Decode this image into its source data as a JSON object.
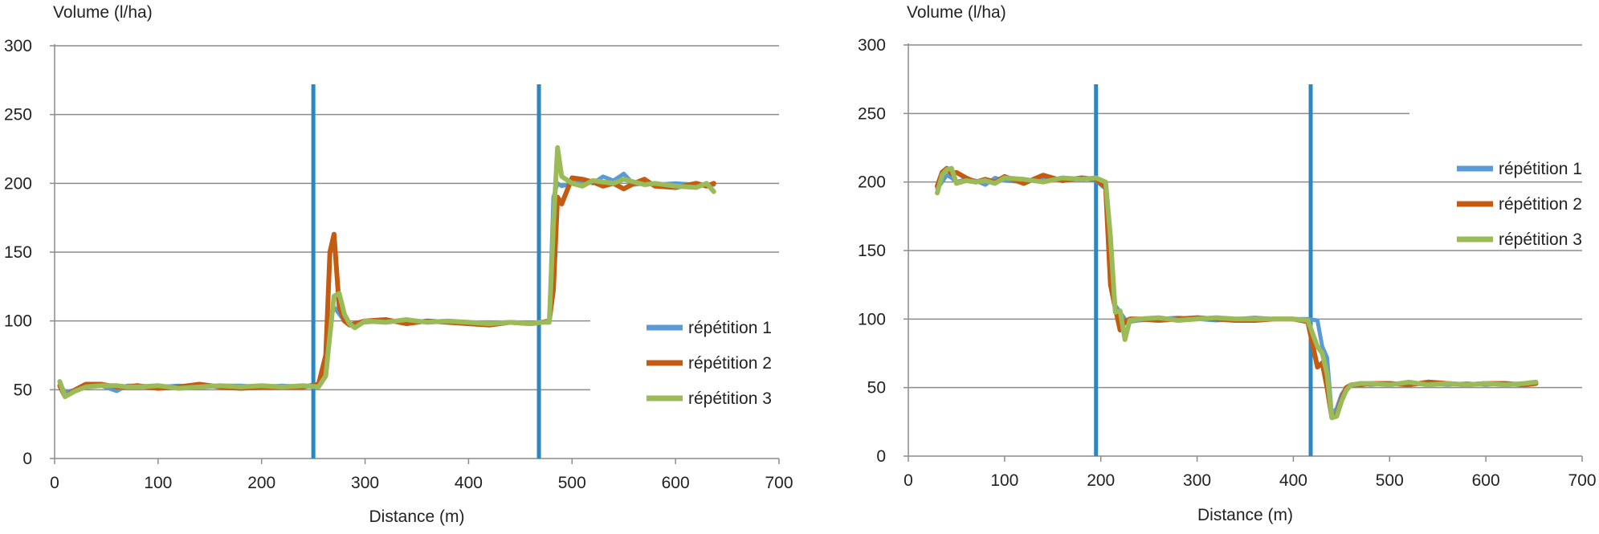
{
  "chart_data": [
    {
      "type": "line",
      "ylabel": "Volume (l/ha)",
      "xlabel": "Distance (m)",
      "xlim": [
        0,
        700
      ],
      "ylim": [
        0,
        300
      ],
      "x_ticks": [
        "0",
        "100",
        "200",
        "300",
        "400",
        "500",
        "600",
        "700"
      ],
      "y_ticks": [
        "0",
        "50",
        "100",
        "150",
        "200",
        "250",
        "300"
      ],
      "grid": true,
      "legend_position": "right",
      "vertical_markers": [
        {
          "x": 250,
          "color": "#2e86c1"
        },
        {
          "x": 468,
          "color": "#2e86c1"
        }
      ],
      "series": [
        {
          "name": "répétition 1",
          "color": "#5b9bd5",
          "x": [
            5,
            10,
            20,
            30,
            45,
            60,
            70,
            80,
            100,
            120,
            140,
            160,
            180,
            200,
            220,
            240,
            255,
            262,
            266,
            270,
            275,
            280,
            285,
            290,
            300,
            320,
            340,
            360,
            380,
            400,
            420,
            440,
            460,
            470,
            478,
            482,
            486,
            490,
            500,
            510,
            520,
            530,
            540,
            550,
            560,
            570,
            580,
            600,
            620,
            630,
            637
          ],
          "y": [
            55,
            48,
            50,
            52,
            53,
            49,
            53,
            53,
            52,
            53,
            52,
            53,
            53,
            52,
            53,
            52,
            54,
            70,
            100,
            110,
            105,
            100,
            97,
            98,
            99,
            100,
            99,
            100,
            99,
            99,
            98,
            99,
            98,
            99,
            100,
            190,
            200,
            198,
            200,
            202,
            200,
            205,
            202,
            207,
            199,
            200,
            199,
            200,
            199,
            198,
            199
          ]
        },
        {
          "name": "répétition 2",
          "color": "#c55a11",
          "x": [
            5,
            10,
            20,
            30,
            45,
            60,
            70,
            80,
            100,
            120,
            140,
            160,
            180,
            200,
            220,
            240,
            255,
            262,
            266,
            270,
            275,
            280,
            285,
            290,
            300,
            320,
            340,
            360,
            380,
            400,
            420,
            440,
            460,
            470,
            478,
            482,
            486,
            490,
            500,
            510,
            520,
            530,
            540,
            550,
            560,
            570,
            580,
            600,
            620,
            630,
            637
          ],
          "y": [
            53,
            45,
            50,
            54,
            54,
            52,
            52,
            53,
            51,
            52,
            54,
            52,
            51,
            52,
            52,
            52,
            54,
            75,
            150,
            163,
            110,
            100,
            97,
            98,
            100,
            101,
            98,
            100,
            99,
            98,
            97,
            99,
            98,
            99,
            100,
            123,
            190,
            185,
            204,
            203,
            201,
            198,
            200,
            196,
            200,
            203,
            198,
            197,
            200,
            198,
            200
          ]
        },
        {
          "name": "répétition 3",
          "color": "#9bbb59",
          "x": [
            5,
            10,
            20,
            30,
            45,
            60,
            70,
            80,
            100,
            120,
            140,
            160,
            180,
            200,
            220,
            240,
            255,
            262,
            266,
            270,
            275,
            280,
            285,
            290,
            300,
            320,
            340,
            360,
            380,
            400,
            420,
            440,
            460,
            470,
            478,
            482,
            486,
            490,
            500,
            510,
            520,
            530,
            540,
            550,
            560,
            570,
            580,
            600,
            620,
            630,
            637
          ],
          "y": [
            56,
            45,
            49,
            52,
            53,
            53,
            52,
            52,
            53,
            51,
            52,
            53,
            52,
            53,
            52,
            53,
            52,
            60,
            90,
            118,
            120,
            105,
            98,
            95,
            100,
            99,
            101,
            99,
            100,
            99,
            98,
            99,
            98,
            99,
            99,
            170,
            226,
            205,
            200,
            198,
            202,
            201,
            200,
            203,
            201,
            199,
            200,
            198,
            197,
            200,
            194
          ]
        }
      ]
    },
    {
      "type": "line",
      "ylabel": "Volume (l/ha)",
      "xlabel": "Distance (m)",
      "xlim": [
        0,
        700
      ],
      "ylim": [
        0,
        300
      ],
      "x_ticks": [
        "0",
        "100",
        "200",
        "300",
        "400",
        "500",
        "600",
        "700"
      ],
      "y_ticks": [
        "0",
        "50",
        "100",
        "150",
        "200",
        "250",
        "300"
      ],
      "grid": true,
      "legend_position": "right",
      "vertical_markers": [
        {
          "x": 195,
          "color": "#2e86c1"
        },
        {
          "x": 418,
          "color": "#2e86c1"
        }
      ],
      "series": [
        {
          "name": "répétition 1",
          "color": "#5b9bd5",
          "x": [
            30,
            35,
            40,
            45,
            50,
            60,
            70,
            80,
            90,
            100,
            120,
            140,
            160,
            180,
            195,
            205,
            210,
            215,
            220,
            225,
            230,
            240,
            260,
            280,
            300,
            320,
            340,
            360,
            380,
            400,
            415,
            425,
            430,
            435,
            440,
            445,
            450,
            455,
            460,
            470,
            480,
            500,
            520,
            540,
            560,
            580,
            600,
            620,
            640,
            652
          ],
          "y": [
            195,
            200,
            205,
            203,
            200,
            202,
            201,
            198,
            203,
            201,
            200,
            203,
            202,
            203,
            201,
            195,
            140,
            110,
            105,
            100,
            98,
            99,
            100,
            101,
            100,
            99,
            100,
            101,
            100,
            100,
            100,
            99,
            80,
            72,
            30,
            35,
            45,
            50,
            52,
            53,
            52,
            53,
            52,
            53,
            52,
            53,
            52,
            53,
            52,
            53
          ]
        },
        {
          "name": "répétition 2",
          "color": "#c55a11",
          "x": [
            30,
            35,
            40,
            45,
            50,
            60,
            70,
            80,
            90,
            100,
            120,
            140,
            160,
            180,
            195,
            205,
            210,
            215,
            220,
            225,
            230,
            240,
            260,
            280,
            300,
            320,
            340,
            360,
            380,
            400,
            415,
            425,
            430,
            435,
            440,
            445,
            450,
            455,
            460,
            470,
            480,
            500,
            520,
            540,
            560,
            580,
            600,
            620,
            640,
            652
          ],
          "y": [
            197,
            207,
            210,
            206,
            207,
            203,
            200,
            202,
            200,
            204,
            199,
            205,
            201,
            203,
            202,
            196,
            125,
            108,
            92,
            98,
            100,
            100,
            99,
            100,
            101,
            100,
            99,
            99,
            100,
            100,
            98,
            65,
            68,
            50,
            28,
            30,
            42,
            50,
            52,
            52,
            53,
            53,
            52,
            54,
            53,
            52,
            53,
            53,
            52,
            53
          ]
        },
        {
          "name": "répétition 3",
          "color": "#9bbb59",
          "x": [
            30,
            35,
            40,
            45,
            50,
            60,
            70,
            80,
            90,
            100,
            120,
            140,
            160,
            180,
            195,
            205,
            210,
            215,
            220,
            225,
            230,
            240,
            260,
            280,
            300,
            320,
            340,
            360,
            380,
            400,
            415,
            425,
            430,
            435,
            440,
            445,
            450,
            455,
            460,
            470,
            480,
            500,
            520,
            540,
            560,
            580,
            600,
            620,
            640,
            652
          ],
          "y": [
            192,
            205,
            209,
            210,
            199,
            201,
            200,
            201,
            199,
            203,
            202,
            200,
            203,
            202,
            203,
            200,
            160,
            105,
            106,
            85,
            99,
            100,
            101,
            99,
            100,
            101,
            100,
            100,
            100,
            100,
            99,
            80,
            75,
            60,
            28,
            29,
            40,
            48,
            52,
            53,
            53,
            52,
            54,
            52,
            53,
            52,
            53,
            52,
            53,
            54
          ]
        }
      ]
    }
  ]
}
